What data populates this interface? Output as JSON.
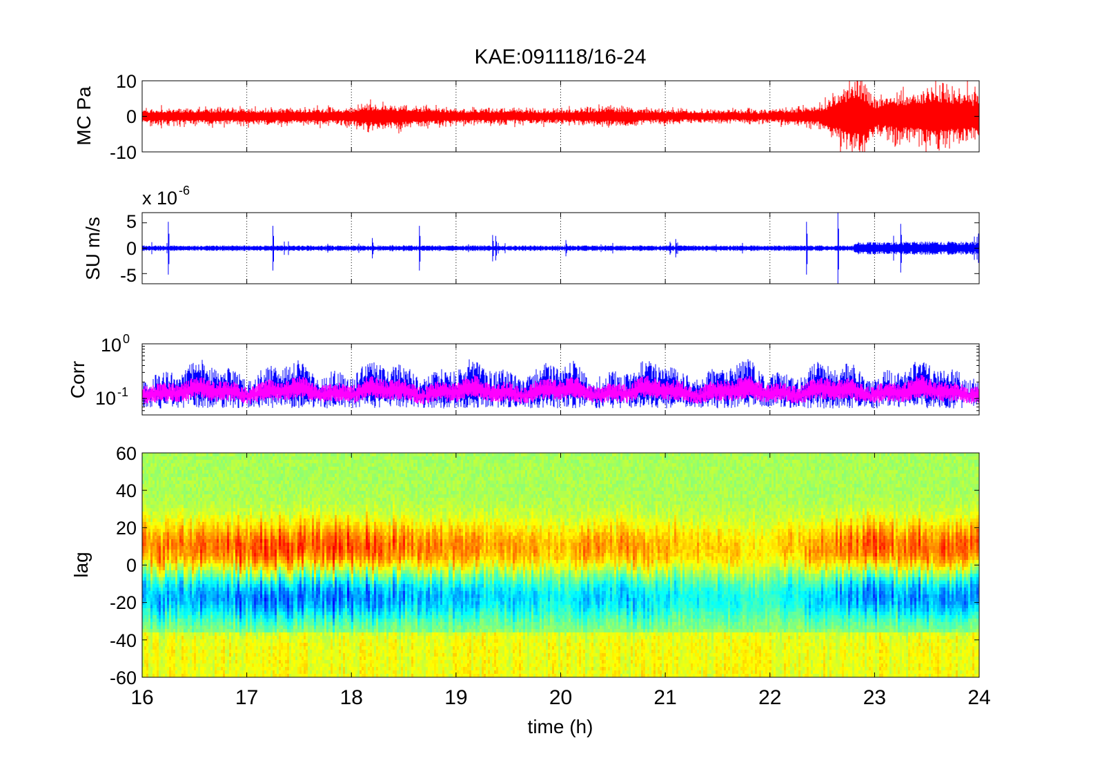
{
  "figure": {
    "title": "KAE:091118/16-24",
    "xlabel": "time (h)",
    "x_ticks": [
      "16",
      "17",
      "18",
      "19",
      "20",
      "21",
      "22",
      "23",
      "24"
    ]
  },
  "chart_data": [
    {
      "type": "line",
      "ylabel": "MC Pa",
      "xlim": [
        16,
        24
      ],
      "ylim": [
        -10,
        10
      ],
      "y_ticks": [
        "10",
        "0",
        "-10"
      ],
      "grid": "x",
      "series": [
        {
          "color": "#ff0000",
          "amplitude_envelope": {
            "x": [
              16,
              17,
              18,
              18.1,
              19,
              20,
              20.5,
              21,
              22,
              22.5,
              22.85,
              23,
              23.6,
              24
            ],
            "y": [
              1.8,
              1.8,
              1.9,
              3.0,
              1.8,
              1.6,
              2.2,
              1.5,
              1.4,
              2.6,
              9.0,
              4.0,
              7.0,
              5.0
            ]
          }
        }
      ]
    },
    {
      "type": "line",
      "ylabel": "SU m/s",
      "y_exponent_label": "x 10",
      "y_exponent": "-6",
      "xlim": [
        16,
        24
      ],
      "ylim": [
        -7,
        7
      ],
      "y_ticks": [
        "5",
        "0",
        "-5"
      ],
      "grid": "x",
      "series": [
        {
          "color": "#0000ff",
          "background_amplitude": 0.5,
          "spikes": {
            "x": [
              16.25,
              17.25,
              18.2,
              18.65,
              19.35,
              19.38,
              20.05,
              21.1,
              22.35,
              22.65,
              23.25
            ],
            "y": [
              5.2,
              4.4,
              2.0,
              4.4,
              2.6,
              2.4,
              1.6,
              1.8,
              5.2,
              7.0,
              4.8
            ]
          },
          "envelope_after_x": 22.8,
          "envelope_amplitude": 1.2
        }
      ]
    },
    {
      "type": "line",
      "ylabel": "Corr",
      "y_scale": "log",
      "ylim": [
        0.05,
        1
      ],
      "y_ticks": [
        "10",
        "10"
      ],
      "y_tick_exponents": [
        "0",
        "-1"
      ],
      "xlim": [
        16,
        24
      ],
      "grid": "x",
      "series": [
        {
          "color": "#0000ff",
          "typical_range": [
            0.06,
            0.35
          ]
        },
        {
          "color": "#ff00ff",
          "typical_range": [
            0.08,
            0.22
          ]
        }
      ]
    },
    {
      "type": "heatmap",
      "ylabel": "lag",
      "xlim": [
        16,
        24
      ],
      "ylim": [
        -60,
        60
      ],
      "y_ticks": [
        "60",
        "40",
        "20",
        "0",
        "-20",
        "-40",
        "-60"
      ],
      "colormap": "jet",
      "value_range": [
        -1,
        1
      ],
      "positive_band_center_y": 10,
      "negative_band_center_y": -16,
      "band_strength": {
        "x": [
          16,
          17,
          18,
          19,
          20,
          20.5,
          21,
          22,
          22.5,
          23,
          24
        ],
        "v": [
          0.65,
          0.75,
          0.75,
          0.55,
          0.45,
          0.6,
          0.45,
          0.3,
          0.55,
          0.7,
          0.7
        ]
      }
    }
  ]
}
